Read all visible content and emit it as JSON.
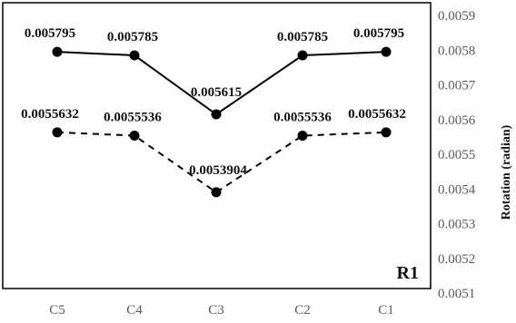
{
  "chart_data": {
    "type": "line",
    "categories": [
      "C5",
      "C4",
      "C3",
      "C2",
      "C1"
    ],
    "series": [
      {
        "style": "solid",
        "values": [
          0.005795,
          0.005785,
          0.005615,
          0.005785,
          0.005795
        ],
        "labels": [
          "0.005795",
          "0.005785",
          "0.005615",
          "0.005785",
          "0.005795"
        ]
      },
      {
        "style": "dashed",
        "values": [
          0.0055632,
          0.0055536,
          0.0053904,
          0.0055536,
          0.0055632
        ],
        "labels": [
          "0.0055632",
          "0.0055536",
          "0.0053904",
          "0.0055536",
          "0.0055632"
        ]
      }
    ],
    "ylabel": "Rotation (radian)",
    "ylim": [
      0.0051,
      0.0059
    ],
    "yticks": [
      "0.0051",
      "0.0052",
      "0.0053",
      "0.0054",
      "0.0055",
      "0.0056",
      "0.0057",
      "0.0058",
      "0.0059"
    ],
    "y_axis_side": "right",
    "grid": false,
    "panel_label": "R1",
    "colors": {
      "line": "#000000",
      "frame": "#000000",
      "ticks": "#595959"
    }
  }
}
